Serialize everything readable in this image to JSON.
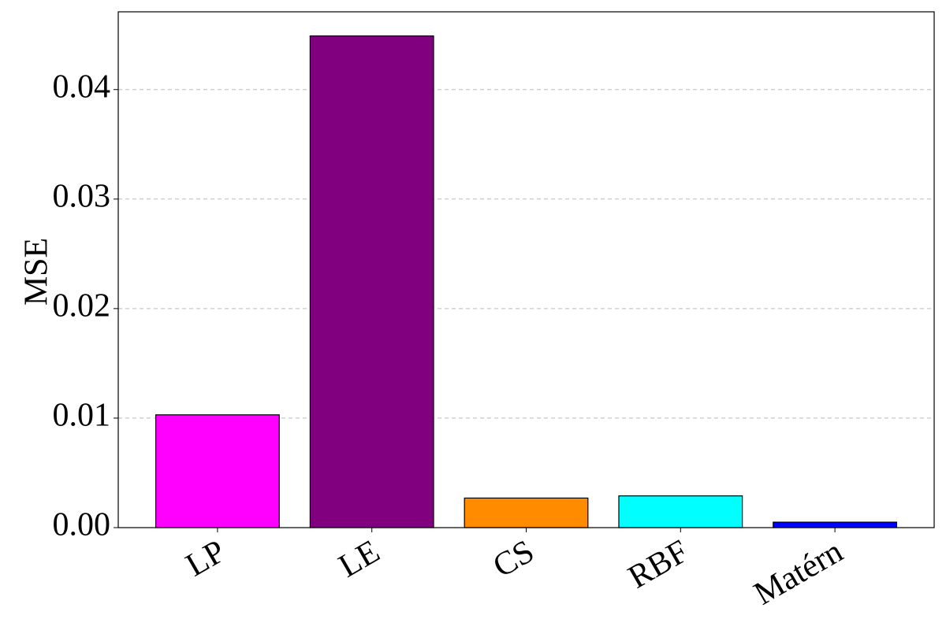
{
  "chart_data": {
    "type": "bar",
    "ylabel": "MSE",
    "categories": [
      "LP",
      "LE",
      "CS",
      "RBF",
      "Matérn"
    ],
    "values": [
      0.0103,
      0.0449,
      0.0027,
      0.0029,
      0.0005
    ],
    "colors": [
      "#ff00ff",
      "#800080",
      "#ff8c00",
      "#00ffff",
      "#0000ff"
    ],
    "ylim": [
      0,
      0.0471
    ],
    "yticks": [
      {
        "value": 0,
        "label": "0.00"
      },
      0.01,
      0.02,
      0.03,
      0.04
    ],
    "grid": true
  }
}
